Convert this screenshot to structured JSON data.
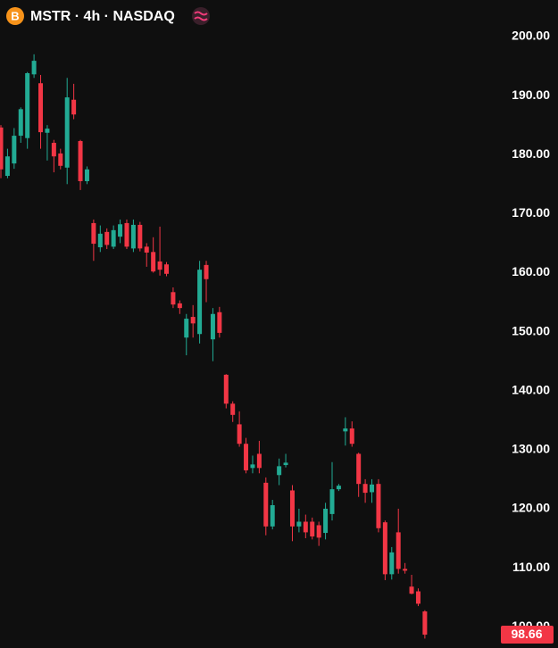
{
  "chart_data": {
    "type": "candlestick",
    "title": "MSTR · 4h · NASDAQ",
    "logo": "B",
    "up_color": "#22ab94",
    "down_color": "#f23645",
    "ylim": [
      96.4,
      206.2
    ],
    "yticks": [
      {
        "value": 100,
        "label": "100.00"
      },
      {
        "value": 110,
        "label": "110.00"
      },
      {
        "value": 120,
        "label": "120.00"
      },
      {
        "value": 130,
        "label": "130.00"
      },
      {
        "value": 140,
        "label": "140.00"
      },
      {
        "value": 150,
        "label": "150.00"
      },
      {
        "value": 160,
        "label": "160.00"
      },
      {
        "value": 170,
        "label": "170.00"
      },
      {
        "value": 180,
        "label": "180.00"
      },
      {
        "value": 190,
        "label": "190.00"
      },
      {
        "value": 200,
        "label": "200.00"
      }
    ],
    "last_price": 98.66,
    "open": [
      184.6,
      176.4,
      178.5,
      183.2,
      182.8,
      193.6,
      192.1,
      183.7,
      182.0,
      180.2,
      177.8,
      189.3,
      182.3,
      175.5,
      168.4,
      164.3,
      166.9,
      164.4,
      166.1,
      168.4,
      164.1,
      168.1,
      164.4,
      163.5,
      161.9,
      161.4,
      156.7,
      154.8,
      149.0,
      152.5,
      149.6,
      161.3,
      148.7,
      153.3,
      142.7,
      137.8,
      134.3,
      131.0,
      126.9,
      129.3,
      124.4,
      117.0,
      125.7,
      127.4,
      123.1,
      117.0,
      117.8,
      117.8,
      117.2,
      115.9,
      119.1,
      123.3,
      133.1,
      133.6,
      129.3,
      124.2,
      122.8,
      124.2,
      117.7,
      108.9,
      116.0,
      109.8,
      106.8,
      106.0,
      102.6
    ],
    "high": [
      185.0,
      181.0,
      184.5,
      188.0,
      194.0,
      197.0,
      193.5,
      185.0,
      182.5,
      181.0,
      193.0,
      192.0,
      182.5,
      178.0,
      169.0,
      168.0,
      167.5,
      168.0,
      169.0,
      169.0,
      169.0,
      168.6,
      165.0,
      166.0,
      167.8,
      161.8,
      157.5,
      155.3,
      153.0,
      154.5,
      162.0,
      162.0,
      154.0,
      154.2,
      142.8,
      138.2,
      136.5,
      132.0,
      129.0,
      131.5,
      125.3,
      121.5,
      128.5,
      129.3,
      124.0,
      120.0,
      119.0,
      118.5,
      117.8,
      121.0,
      127.9,
      124.2,
      135.5,
      134.8,
      129.5,
      125.0,
      125.0,
      125.0,
      118.0,
      113.5,
      120.0,
      110.8,
      108.8,
      106.5,
      102.8
    ],
    "low": [
      176.0,
      176.0,
      177.6,
      182.0,
      181.0,
      193.0,
      181.0,
      179.0,
      177.0,
      177.5,
      175.0,
      186.0,
      174.0,
      175.0,
      162.0,
      163.5,
      164.0,
      164.0,
      165.0,
      164.0,
      163.5,
      163.6,
      161.0,
      160.0,
      159.5,
      159.4,
      154.0,
      153.0,
      146.0,
      149.0,
      148.0,
      155.0,
      145.0,
      149.0,
      137.0,
      134.7,
      130.5,
      126.0,
      126.0,
      126.0,
      115.5,
      116.5,
      124.0,
      127.0,
      114.5,
      116.0,
      115.0,
      114.8,
      113.7,
      114.8,
      118.0,
      123.0,
      130.7,
      130.5,
      122.0,
      121.0,
      121.0,
      116.0,
      107.9,
      108.0,
      109.0,
      109.0,
      105.5,
      103.5,
      98.0
    ],
    "close": [
      177.5,
      179.7,
      183.2,
      187.7,
      193.8,
      195.9,
      183.8,
      184.4,
      179.7,
      178.1,
      189.7,
      186.8,
      175.5,
      177.5,
      164.9,
      166.6,
      164.7,
      167.2,
      168.2,
      164.4,
      168.1,
      164.1,
      163.4,
      160.2,
      160.5,
      159.8,
      154.6,
      154.0,
      152.2,
      151.4,
      160.5,
      158.9,
      153.0,
      149.8,
      137.8,
      135.9,
      131.0,
      126.5,
      127.5,
      126.9,
      117.0,
      120.6,
      127.2,
      127.8,
      117.0,
      117.8,
      116.0,
      115.3,
      115.1,
      120.0,
      123.3,
      123.9,
      133.6,
      131.0,
      124.2,
      122.7,
      124.1,
      116.7,
      108.9,
      112.6,
      109.8,
      109.5,
      105.6,
      103.9,
      98.66
    ]
  }
}
